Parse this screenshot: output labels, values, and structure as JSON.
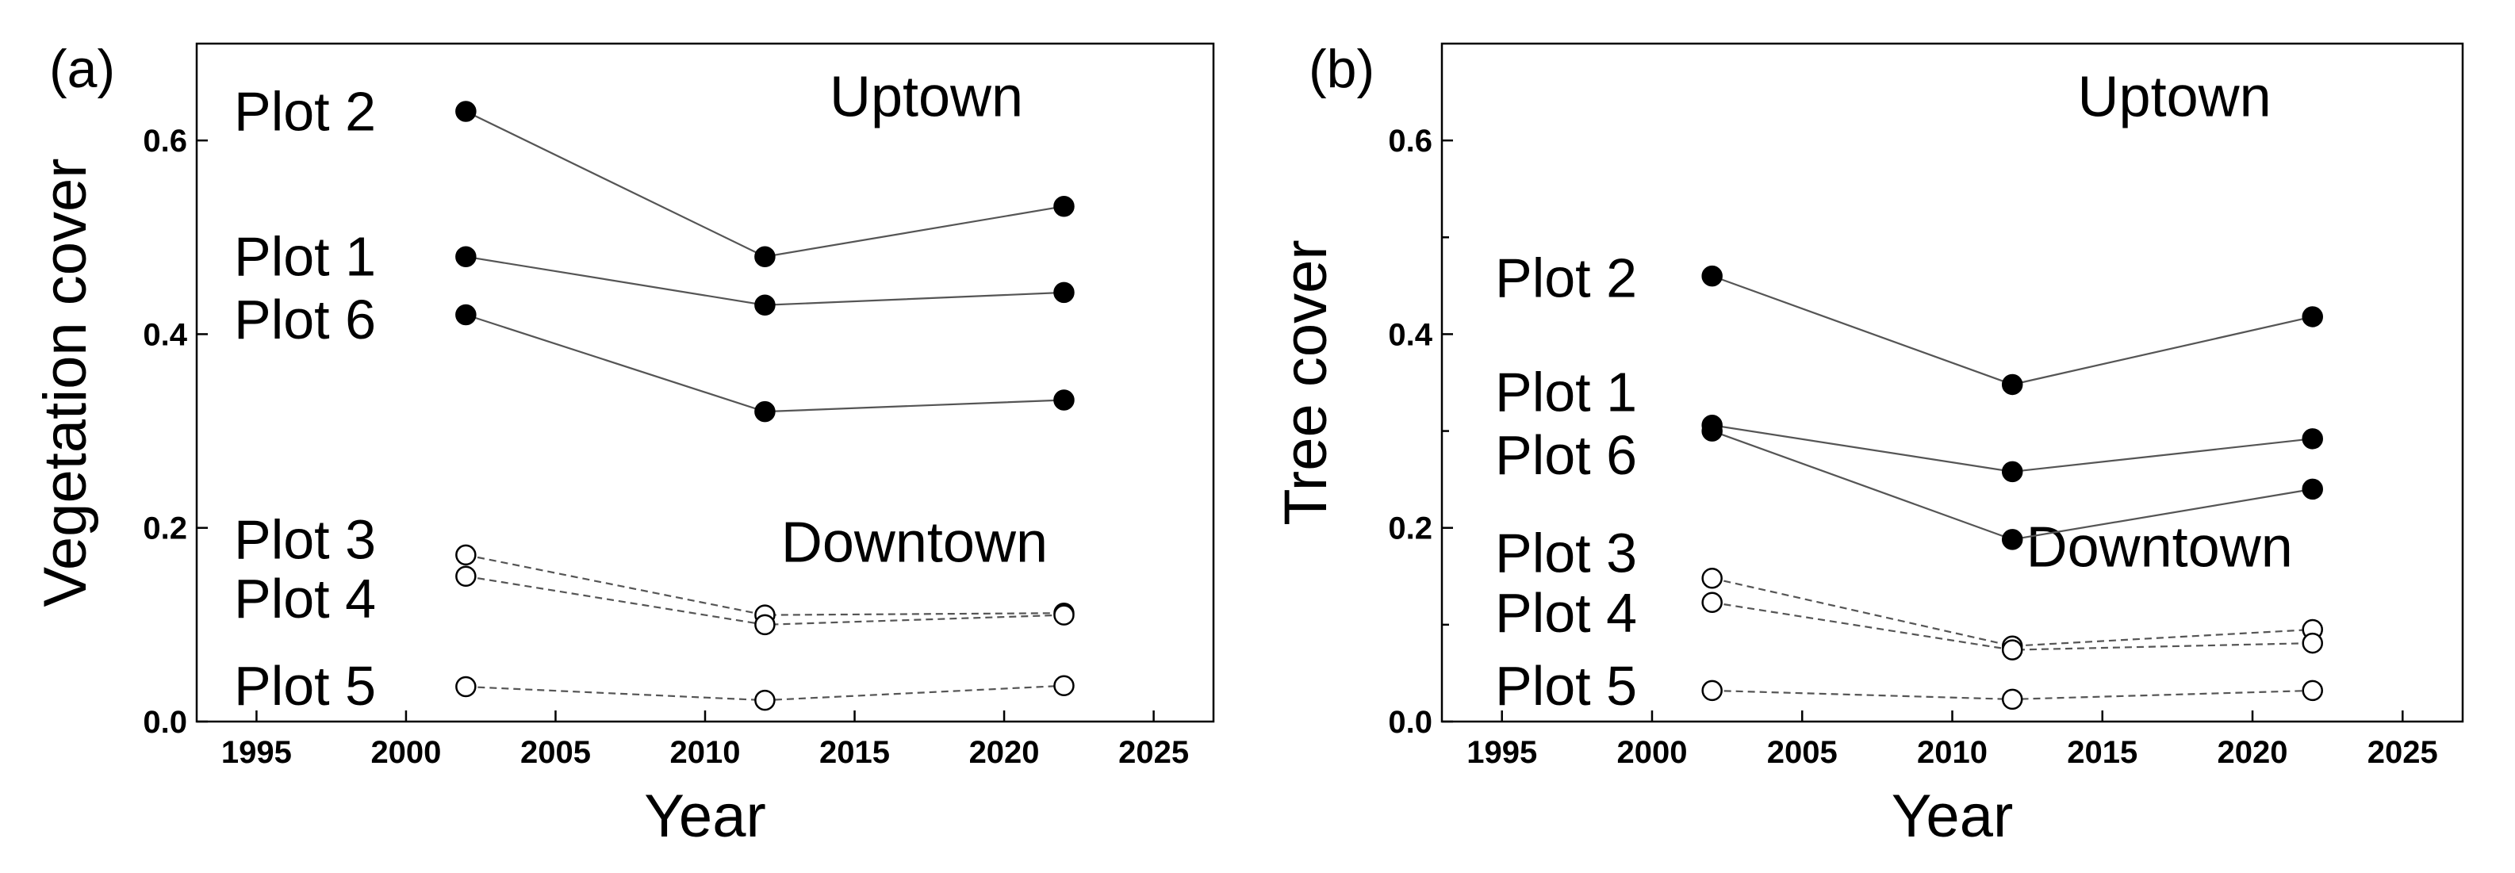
{
  "chart_data": [
    {
      "type": "line",
      "panel_label": "(a)",
      "title": "",
      "xlabel": "Year",
      "ylabel": "Vegetation cover",
      "xlim": [
        1993,
        2027
      ],
      "ylim": [
        0.0,
        0.7
      ],
      "x_ticks": [
        1995,
        2000,
        2005,
        2010,
        2015,
        2020,
        2025
      ],
      "y_ticks": [
        0.0,
        0.2,
        0.4,
        0.6
      ],
      "y_tick_labels": [
        "0.0",
        "0.2",
        "0.4",
        "0.6"
      ],
      "grid": false,
      "annotations": [
        {
          "text": "Uptown",
          "x": 2017.4,
          "y": 0.625
        },
        {
          "text": "Downtown",
          "x": 2017.0,
          "y": 0.165
        }
      ],
      "series": [
        {
          "name": "Plot 2",
          "group": "Uptown",
          "marker": "filled",
          "line": "solid",
          "x": [
            2002,
            2012,
            2022
          ],
          "y": [
            0.63,
            0.48,
            0.532
          ],
          "label_y": 0.63
        },
        {
          "name": "Plot 1",
          "group": "Uptown",
          "marker": "filled",
          "line": "solid",
          "x": [
            2002,
            2012,
            2022
          ],
          "y": [
            0.48,
            0.43,
            0.443
          ],
          "label_y": 0.48
        },
        {
          "name": "Plot 6",
          "group": "Uptown",
          "marker": "filled",
          "line": "solid",
          "x": [
            2002,
            2012,
            2022
          ],
          "y": [
            0.42,
            0.32,
            0.332
          ],
          "label_y": 0.415
        },
        {
          "name": "Plot 3",
          "group": "Downtown",
          "marker": "open",
          "line": "dashed",
          "x": [
            2002,
            2012,
            2022
          ],
          "y": [
            0.172,
            0.11,
            0.112
          ],
          "label_y": 0.188
        },
        {
          "name": "Plot 4",
          "group": "Downtown",
          "marker": "open",
          "line": "dashed",
          "x": [
            2002,
            2012,
            2022
          ],
          "y": [
            0.15,
            0.1,
            0.11
          ],
          "label_y": 0.127
        },
        {
          "name": "Plot 5",
          "group": "Downtown",
          "marker": "open",
          "line": "dashed",
          "x": [
            2002,
            2012,
            2022
          ],
          "y": [
            0.036,
            0.022,
            0.037
          ],
          "label_y": 0.037
        }
      ]
    },
    {
      "type": "line",
      "panel_label": "(b)",
      "title": "",
      "xlabel": "Year",
      "ylabel": "Tree cover",
      "xlim": [
        1993,
        2027
      ],
      "ylim": [
        0.0,
        0.7
      ],
      "x_ticks": [
        1995,
        2000,
        2005,
        2010,
        2015,
        2020,
        2025
      ],
      "y_ticks": [
        0.0,
        0.2,
        0.4,
        0.6
      ],
      "y_tick_labels": [
        "0.0",
        "0.2",
        "0.4",
        "0.6"
      ],
      "minor_y_ticks": [
        0.1,
        0.3,
        0.5
      ],
      "grid": false,
      "annotations": [
        {
          "text": "Uptown",
          "x": 2017.4,
          "y": 0.625
        },
        {
          "text": "Downtown",
          "x": 2016.9,
          "y": 0.16
        }
      ],
      "series": [
        {
          "name": "Plot 2",
          "group": "Uptown",
          "marker": "filled",
          "line": "solid",
          "x": [
            2002,
            2012,
            2022
          ],
          "y": [
            0.46,
            0.348,
            0.418
          ],
          "label_y": 0.458
        },
        {
          "name": "Plot 1",
          "group": "Uptown",
          "marker": "filled",
          "line": "solid",
          "x": [
            2002,
            2012,
            2022
          ],
          "y": [
            0.306,
            0.258,
            0.292
          ],
          "label_y": 0.34
        },
        {
          "name": "Plot 6",
          "group": "Uptown",
          "marker": "filled",
          "line": "solid",
          "x": [
            2002,
            2012,
            2022
          ],
          "y": [
            0.3,
            0.188,
            0.24
          ],
          "label_y": 0.275
        },
        {
          "name": "Plot 3",
          "group": "Downtown",
          "marker": "open",
          "line": "dashed",
          "x": [
            2002,
            2012,
            2022
          ],
          "y": [
            0.148,
            0.078,
            0.095
          ],
          "label_y": 0.174
        },
        {
          "name": "Plot 4",
          "group": "Downtown",
          "marker": "open",
          "line": "dashed",
          "x": [
            2002,
            2012,
            2022
          ],
          "y": [
            0.123,
            0.074,
            0.081
          ],
          "label_y": 0.112
        },
        {
          "name": "Plot 5",
          "group": "Downtown",
          "marker": "open",
          "line": "dashed",
          "x": [
            2002,
            2012,
            2022
          ],
          "y": [
            0.032,
            0.023,
            0.032
          ],
          "label_y": 0.037
        }
      ]
    }
  ]
}
